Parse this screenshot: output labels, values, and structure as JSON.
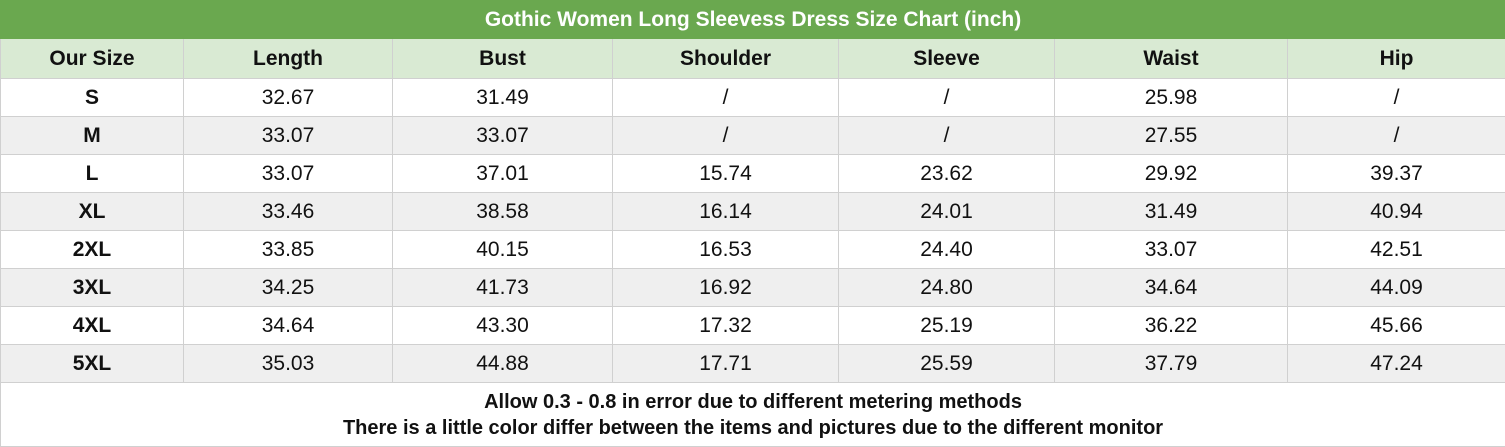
{
  "title": "Gothic Women Long Sleevess Dress Size Chart (inch)",
  "columns": [
    "Our Size",
    "Length",
    "Bust",
    "Shoulder",
    "Sleeve",
    "Waist",
    "Hip"
  ],
  "rows": [
    [
      "S",
      "32.67",
      "31.49",
      "/",
      "/",
      "25.98",
      "/"
    ],
    [
      "M",
      "33.07",
      "33.07",
      "/",
      "/",
      "27.55",
      "/"
    ],
    [
      "L",
      "33.07",
      "37.01",
      "15.74",
      "23.62",
      "29.92",
      "39.37"
    ],
    [
      "XL",
      "33.46",
      "38.58",
      "16.14",
      "24.01",
      "31.49",
      "40.94"
    ],
    [
      "2XL",
      "33.85",
      "40.15",
      "16.53",
      "24.40",
      "33.07",
      "42.51"
    ],
    [
      "3XL",
      "34.25",
      "41.73",
      "16.92",
      "24.80",
      "34.64",
      "44.09"
    ],
    [
      "4XL",
      "34.64",
      "43.30",
      "17.32",
      "25.19",
      "36.22",
      "45.66"
    ],
    [
      "5XL",
      "35.03",
      "44.88",
      "17.71",
      "25.59",
      "37.79",
      "47.24"
    ]
  ],
  "notes": [
    "Allow 0.3 - 0.8 in error due to different metering methods",
    "There is a little color differ between the items and pictures due to the different monitor"
  ]
}
